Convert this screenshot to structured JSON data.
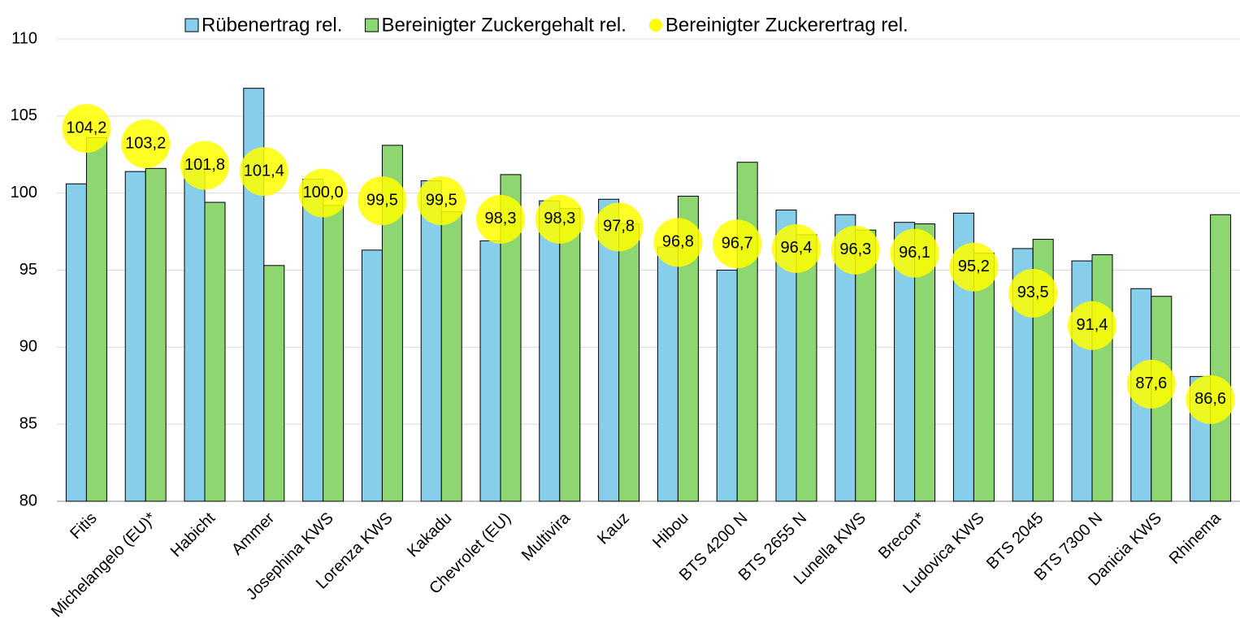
{
  "chart_data": {
    "type": "bar",
    "categories": [
      "Fitis",
      "Michelangelo (EU)*",
      "Habicht",
      "Ammer",
      "Josephina KWS",
      "Lorenza KWS",
      "Kakadu",
      "Chevrolet (EU)",
      "Multivira",
      "Kauz",
      "Hibou",
      "BTS 4200 N",
      "BTS 2655 N",
      "Lunella KWS",
      "Brecon*",
      "Ludovica KWS",
      "BTS 2045",
      "BTS 7300 N",
      "Danicia KWS",
      "Rhinema"
    ],
    "series": [
      {
        "name": "Rübenertrag rel.",
        "color": "#87ceeb",
        "type": "bar",
        "values": [
          100.6,
          101.4,
          102.0,
          106.8,
          100.9,
          96.3,
          100.8,
          96.9,
          99.5,
          99.6,
          96.5,
          95.0,
          98.9,
          98.6,
          98.1,
          98.7,
          96.4,
          95.6,
          93.8,
          88.1
        ]
      },
      {
        "name": "Bereinigter Zuckergehalt rel.",
        "color": "#8dd672",
        "type": "bar",
        "values": [
          103.6,
          101.6,
          99.4,
          95.3,
          99.2,
          103.1,
          98.8,
          101.2,
          99.0,
          98.0,
          99.8,
          102.0,
          97.3,
          97.6,
          98.0,
          96.1,
          97.0,
          96.0,
          93.3,
          98.6
        ]
      },
      {
        "name": "Bereinigter Zuckerertrag rel.",
        "color": "#ffff00",
        "type": "dot",
        "values": [
          104.2,
          103.2,
          101.8,
          101.4,
          100.0,
          99.5,
          99.5,
          98.3,
          98.3,
          97.8,
          96.8,
          96.7,
          96.4,
          96.3,
          96.1,
          95.2,
          93.5,
          91.4,
          87.6,
          86.6
        ],
        "value_labels": [
          "104,2",
          "103,2",
          "101,8",
          "101,4",
          "100,0",
          "99,5",
          "99,5",
          "98,3",
          "98,3",
          "97,8",
          "96,8",
          "96,7",
          "96,4",
          "96,3",
          "96,1",
          "95,2",
          "93,5",
          "91,4",
          "87,6",
          "86,6"
        ]
      }
    ],
    "ylim": [
      80,
      110
    ],
    "yticks": [
      80,
      85,
      90,
      95,
      100,
      105,
      110
    ],
    "grid": true,
    "legend": "top"
  }
}
